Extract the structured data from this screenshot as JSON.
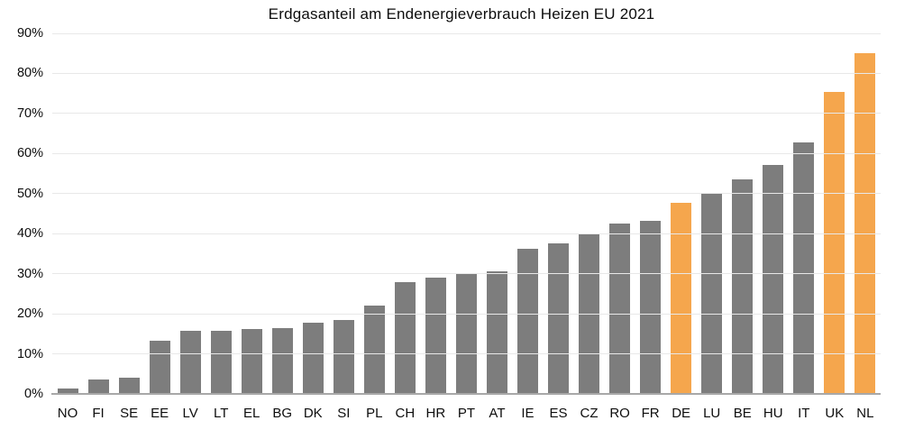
{
  "colors": {
    "bar_default": "#7d7d7d",
    "bar_highlight": "#f5a64d",
    "gridline": "#e8e8e8",
    "axis_line": "#a8a8a8",
    "text": "#0d0d0d"
  },
  "chart_data": {
    "type": "bar",
    "title": "Erdgasanteil am Endenergieverbrauch Heizen EU 2021",
    "xlabel": "",
    "ylabel": "",
    "ylim": [
      0,
      90
    ],
    "y_tick_step": 10,
    "y_tick_labels": [
      "0%",
      "10%",
      "20%",
      "30%",
      "40%",
      "50%",
      "60%",
      "70%",
      "80%",
      "90%"
    ],
    "grid": "horizontal",
    "legend": "none",
    "categories": [
      "NO",
      "FI",
      "SE",
      "EE",
      "LV",
      "LT",
      "EL",
      "BG",
      "DK",
      "SI",
      "PL",
      "CH",
      "HR",
      "PT",
      "AT",
      "IE",
      "ES",
      "CZ",
      "RO",
      "FR",
      "DE",
      "LU",
      "BE",
      "HU",
      "IT",
      "UK",
      "NL"
    ],
    "values": [
      1.4,
      3.5,
      4.0,
      13.3,
      15.8,
      15.8,
      16.2,
      16.4,
      17.7,
      18.5,
      22.0,
      28.0,
      29.0,
      30.0,
      30.7,
      36.3,
      37.5,
      40.0,
      42.5,
      43.2,
      47.7,
      50.2,
      53.5,
      57.2,
      62.7,
      75.3,
      85.0
    ],
    "highlighted_categories": [
      "DE",
      "UK",
      "NL"
    ]
  }
}
